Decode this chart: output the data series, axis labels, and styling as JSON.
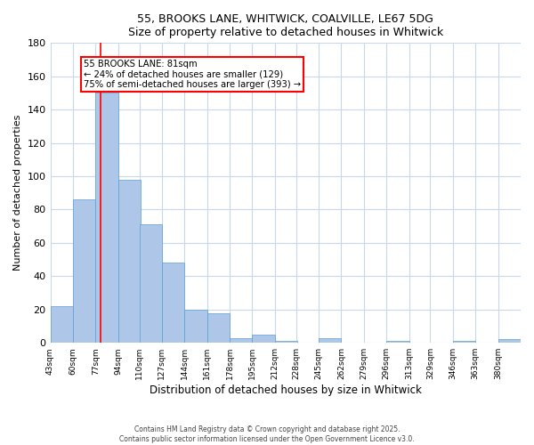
{
  "title_line1": "55, BROOKS LANE, WHITWICK, COALVILLE, LE67 5DG",
  "title_line2": "Size of property relative to detached houses in Whitwick",
  "xlabel": "Distribution of detached houses by size in Whitwick",
  "ylabel": "Number of detached properties",
  "bin_labels": [
    "43sqm",
    "60sqm",
    "77sqm",
    "94sqm",
    "110sqm",
    "127sqm",
    "144sqm",
    "161sqm",
    "178sqm",
    "195sqm",
    "212sqm",
    "228sqm",
    "245sqm",
    "262sqm",
    "279sqm",
    "296sqm",
    "313sqm",
    "329sqm",
    "346sqm",
    "363sqm",
    "380sqm"
  ],
  "bin_edges": [
    43,
    60,
    77,
    94,
    110,
    127,
    144,
    161,
    178,
    195,
    212,
    228,
    245,
    262,
    279,
    296,
    313,
    329,
    346,
    363,
    380
  ],
  "bar_heights": [
    22,
    86,
    150,
    98,
    71,
    48,
    20,
    18,
    3,
    5,
    1,
    0,
    3,
    0,
    0,
    1,
    0,
    0,
    1,
    0,
    2
  ],
  "bar_color": "#aec6e8",
  "bar_edge_color": "#5a9fd4",
  "ylim": [
    0,
    180
  ],
  "yticks": [
    0,
    20,
    40,
    60,
    80,
    100,
    120,
    140,
    160,
    180
  ],
  "red_line_x": 81,
  "annotation_text": "55 BROOKS LANE: 81sqm\n← 24% of detached houses are smaller (129)\n75% of semi-detached houses are larger (393) →",
  "footer_line1": "Contains HM Land Registry data © Crown copyright and database right 2025.",
  "footer_line2": "Contains public sector information licensed under the Open Government Licence v3.0.",
  "background_color": "#ffffff",
  "grid_color": "#c8d8e8"
}
